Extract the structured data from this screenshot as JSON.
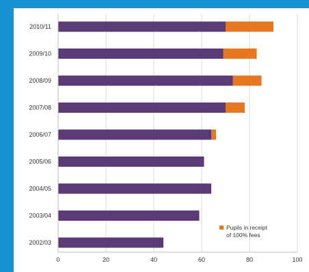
{
  "chart_data": {
    "type": "bar",
    "orientation": "horizontal",
    "stacked": true,
    "categories": [
      "2010/11",
      "2009/10",
      "2008/09",
      "2007/08",
      "2006/07",
      "2005/06",
      "2004/05",
      "2003/04",
      "2002/03"
    ],
    "series": [
      {
        "values": [
          70,
          69,
          73,
          70,
          64,
          61,
          64,
          59,
          44
        ],
        "color": "#5b3a78"
      },
      {
        "name": "Pupils in receipt of 100% fees",
        "values": [
          20,
          14,
          12,
          8,
          2,
          0,
          0,
          0,
          0
        ],
        "color": "#e87722"
      }
    ],
    "xlim": [
      0,
      100
    ],
    "xticks": [
      "0",
      "20",
      "40",
      "60",
      "80",
      "100"
    ],
    "grid": "vertical",
    "legend": {
      "placement": "bottom-right",
      "lines": [
        "Pupils in receipt",
        "of 100% fees"
      ]
    }
  }
}
